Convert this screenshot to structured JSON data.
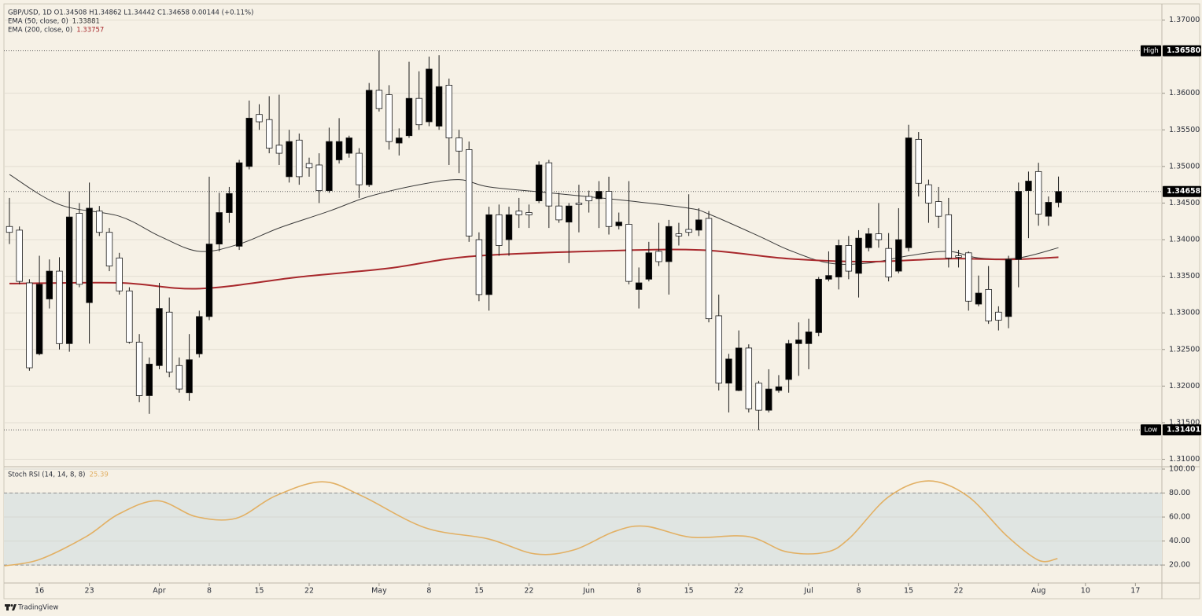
{
  "chart_data": [
    {
      "type": "candlestick",
      "title": "GBP/USD, 1D  O1.34508 H1.34862 L1.34442 C1.34658 0.00144 (+0.11%)",
      "open": [
        1.3418,
        1.3413,
        1.3341,
        1.3244,
        1.3319,
        1.3357,
        1.3258,
        1.3436,
        1.3314,
        1.3439,
        1.341,
        1.3375,
        1.333,
        1.326,
        1.3187,
        1.3228,
        1.3301,
        1.3228,
        1.3191,
        1.3244,
        1.3295,
        1.3394,
        1.3437,
        1.3391,
        1.35,
        1.3571,
        1.3564,
        1.3529,
        1.3486,
        1.3536,
        1.3504,
        1.3502,
        1.3467,
        1.3509,
        1.3518,
        1.3518,
        1.3475,
        1.3604,
        1.3598,
        1.3532,
        1.3542,
        1.3593,
        1.3561,
        1.3555,
        1.3611,
        1.3539,
        1.3523,
        1.34,
        1.3325,
        1.3434,
        1.34,
        1.3439,
        1.3437,
        1.3453,
        1.3505,
        1.3446,
        1.3424,
        1.345,
        1.3459,
        1.3456,
        1.3466,
        1.3419,
        1.3421,
        1.3332,
        1.3346,
        1.3384,
        1.337,
        1.3408,
        1.3414,
        1.3413,
        1.3429,
        1.3296,
        1.3204,
        1.3194,
        1.3252,
        1.3204,
        1.3167,
        1.3194,
        1.3209,
        1.3258,
        1.3258,
        1.3273,
        1.3346,
        1.3349,
        1.3392,
        1.3354,
        1.3389,
        1.3408,
        1.3388,
        1.3357,
        1.3389,
        1.3537,
        1.3475,
        1.3452,
        1.3434,
        1.3378,
        1.3382,
        1.3312,
        1.3332,
        1.3301,
        1.3295,
        1.3373,
        1.3467,
        1.3493,
        1.3432,
        1.34508
      ],
      "high": [
        1.3457,
        1.3418,
        1.3346,
        1.3378,
        1.3373,
        1.3376,
        1.3466,
        1.345,
        1.3478,
        1.3446,
        1.3416,
        1.3382,
        1.3335,
        1.3271,
        1.3239,
        1.3341,
        1.3321,
        1.3239,
        1.3271,
        1.3303,
        1.3486,
        1.3464,
        1.3472,
        1.3509,
        1.359,
        1.3585,
        1.3596,
        1.3598,
        1.355,
        1.3545,
        1.3512,
        1.3518,
        1.3553,
        1.3566,
        1.3542,
        1.3525,
        1.3614,
        1.3658,
        1.3611,
        1.3552,
        1.3643,
        1.363,
        1.365,
        1.3652,
        1.362,
        1.355,
        1.3534,
        1.341,
        1.3445,
        1.3448,
        1.3445,
        1.3457,
        1.3448,
        1.3507,
        1.3509,
        1.3464,
        1.345,
        1.3475,
        1.3467,
        1.348,
        1.3486,
        1.3437,
        1.348,
        1.3362,
        1.3397,
        1.3423,
        1.3427,
        1.3423,
        1.3462,
        1.3443,
        1.3439,
        1.3325,
        1.3244,
        1.3276,
        1.3257,
        1.3207,
        1.3223,
        1.3215,
        1.3263,
        1.3287,
        1.3292,
        1.3349,
        1.3384,
        1.34,
        1.3405,
        1.3413,
        1.3416,
        1.345,
        1.3409,
        1.3443,
        1.3557,
        1.3547,
        1.3482,
        1.3472,
        1.3457,
        1.3386,
        1.3384,
        1.3351,
        1.3364,
        1.3309,
        1.3378,
        1.3478,
        1.3493,
        1.3505,
        1.3459,
        1.34862
      ],
      "low": [
        1.3394,
        1.3339,
        1.3221,
        1.3242,
        1.3306,
        1.325,
        1.3247,
        1.3335,
        1.3258,
        1.3405,
        1.3357,
        1.3325,
        1.3258,
        1.3178,
        1.3162,
        1.3223,
        1.3212,
        1.3191,
        1.318,
        1.3239,
        1.329,
        1.3384,
        1.3423,
        1.3386,
        1.3496,
        1.355,
        1.3518,
        1.3502,
        1.3478,
        1.3475,
        1.3486,
        1.345,
        1.3464,
        1.3504,
        1.3512,
        1.3457,
        1.3472,
        1.3575,
        1.3523,
        1.3515,
        1.3539,
        1.355,
        1.3555,
        1.355,
        1.3502,
        1.3491,
        1.3397,
        1.3316,
        1.3303,
        1.3378,
        1.3378,
        1.3416,
        1.3416,
        1.345,
        1.3416,
        1.3423,
        1.3368,
        1.341,
        1.3437,
        1.3416,
        1.3407,
        1.3414,
        1.3339,
        1.3306,
        1.3343,
        1.3364,
        1.3325,
        1.3392,
        1.3405,
        1.3405,
        1.3287,
        1.3194,
        1.3164,
        1.3193,
        1.3164,
        1.314,
        1.3164,
        1.3191,
        1.3191,
        1.3214,
        1.3223,
        1.3268,
        1.3343,
        1.3332,
        1.3346,
        1.3321,
        1.3384,
        1.3389,
        1.3343,
        1.3354,
        1.3384,
        1.3459,
        1.3423,
        1.3416,
        1.3362,
        1.3362,
        1.3303,
        1.3309,
        1.3285,
        1.3276,
        1.3279,
        1.3335,
        1.3402,
        1.3419,
        1.3419,
        1.34442
      ],
      "close": [
        1.341,
        1.3343,
        1.3225,
        1.3339,
        1.3357,
        1.3258,
        1.3431,
        1.3339,
        1.3443,
        1.341,
        1.3364,
        1.333,
        1.326,
        1.3187,
        1.323,
        1.3306,
        1.3219,
        1.3196,
        1.3236,
        1.3295,
        1.3394,
        1.3437,
        1.3463,
        1.3505,
        1.3566,
        1.3561,
        1.3525,
        1.3518,
        1.3534,
        1.3486,
        1.3498,
        1.3467,
        1.3534,
        1.3534,
        1.3539,
        1.3475,
        1.3604,
        1.3579,
        1.3534,
        1.3539,
        1.3593,
        1.3557,
        1.3633,
        1.3609,
        1.3539,
        1.3521,
        1.3405,
        1.3325,
        1.3434,
        1.3392,
        1.3434,
        1.3434,
        1.3434,
        1.3502,
        1.3446,
        1.3427,
        1.3446,
        1.3448,
        1.3453,
        1.3466,
        1.3418,
        1.3424,
        1.3343,
        1.3341,
        1.3382,
        1.337,
        1.3418,
        1.3405,
        1.341,
        1.3427,
        1.3292,
        1.3204,
        1.3237,
        1.3252,
        1.3169,
        1.3167,
        1.3196,
        1.3199,
        1.3258,
        1.3263,
        1.3274,
        1.3346,
        1.3351,
        1.3392,
        1.3357,
        1.3402,
        1.3408,
        1.34,
        1.3349,
        1.34,
        1.3539,
        1.3477,
        1.345,
        1.3432,
        1.3375,
        1.3376,
        1.3316,
        1.3327,
        1.3289,
        1.329,
        1.3373,
        1.3466,
        1.348,
        1.3435,
        1.3451,
        1.34658
      ],
      "up_color": "#000000",
      "down_color": "#ffffff",
      "xlim": [
        -0.55,
        115.35
      ],
      "xticks": [
        {
          "value": 3,
          "label": "16"
        },
        {
          "value": 8,
          "label": "23"
        },
        {
          "value": 15,
          "label": "Apr"
        },
        {
          "value": 20,
          "label": "8"
        },
        {
          "value": 25,
          "label": "15"
        },
        {
          "value": 30,
          "label": "22"
        },
        {
          "value": 37,
          "label": "May"
        },
        {
          "value": 42,
          "label": "8"
        },
        {
          "value": 47,
          "label": "15"
        },
        {
          "value": 52,
          "label": "22"
        },
        {
          "value": 58,
          "label": "Jun"
        },
        {
          "value": 63,
          "label": "8"
        },
        {
          "value": 68,
          "label": "15"
        },
        {
          "value": 73,
          "label": "22"
        },
        {
          "value": 80,
          "label": "Jul"
        },
        {
          "value": 85,
          "label": "8"
        },
        {
          "value": 90,
          "label": "15"
        },
        {
          "value": 95,
          "label": "22"
        },
        {
          "value": 103,
          "label": "Aug"
        },
        {
          "value": 107.7,
          "label": "10"
        },
        {
          "value": 112.7,
          "label": "17"
        }
      ],
      "ylim": [
        1.3092,
        1.3722
      ],
      "yticks": [
        {
          "value": 1.31,
          "label": "1.31000"
        },
        {
          "value": 1.315,
          "label": "1.31500"
        },
        {
          "value": 1.32,
          "label": "1.32000"
        },
        {
          "value": 1.325,
          "label": "1.32500"
        },
        {
          "value": 1.33,
          "label": "1.33000"
        },
        {
          "value": 1.335,
          "label": "1.33500"
        },
        {
          "value": 1.34,
          "label": "1.34000"
        },
        {
          "value": 1.345,
          "label": "1.34500"
        },
        {
          "value": 1.35,
          "label": "1.35000"
        },
        {
          "value": 1.355,
          "label": "1.35500"
        },
        {
          "value": 1.36,
          "label": "1.36000"
        },
        {
          "value": 1.37,
          "label": "1.37000"
        }
      ],
      "grid": true,
      "overlays": [
        {
          "name": "EMA (50, close, 0)",
          "last_label": "1.33881",
          "color": "#3a3a3a",
          "width": 1,
          "x": [
            0,
            5,
            11,
            15,
            19,
            23,
            27,
            32,
            36,
            41,
            45,
            48,
            54,
            62,
            68,
            70,
            75,
            78,
            82,
            86,
            90,
            94,
            97,
            101,
            105
          ],
          "values": [
            1.3489,
            1.3448,
            1.3432,
            1.3405,
            1.3384,
            1.3394,
            1.3416,
            1.3439,
            1.3459,
            1.3475,
            1.3482,
            1.3472,
            1.3464,
            1.3453,
            1.3443,
            1.3435,
            1.3405,
            1.3386,
            1.3368,
            1.3368,
            1.3378,
            1.3384,
            1.3375,
            1.3375,
            1.3389
          ]
        },
        {
          "name": "EMA (200, close, 0)",
          "last_label": "1.33757",
          "color": "#a8282c",
          "width": 2,
          "x": [
            0,
            11,
            19,
            29,
            38,
            46,
            58,
            69,
            78,
            86,
            94,
            100,
            105
          ],
          "values": [
            1.334,
            1.3341,
            1.3333,
            1.3349,
            1.3361,
            1.3377,
            1.3384,
            1.3386,
            1.3374,
            1.337,
            1.3374,
            1.3373,
            1.3376
          ]
        }
      ],
      "markers": [
        {
          "name": "High",
          "value": 1.3658,
          "value_label": "1.36580"
        },
        {
          "name": "Low",
          "value": 1.31401,
          "value_label": "1.31401"
        },
        {
          "value": 1.34658,
          "value_label": "1.34658"
        }
      ]
    },
    {
      "type": "line",
      "title": "Stoch RSI (14, 14, 8, 8)",
      "last_label": "25.39",
      "color": "#e2b064",
      "xlim": [
        -0.55,
        115.35
      ],
      "x": [
        -0.5,
        3,
        7.7,
        10.9,
        14.8,
        18.7,
        22.7,
        26.6,
        31.3,
        35.3,
        41.6,
        47.9,
        52.6,
        56.5,
        60.5,
        63.6,
        68.3,
        73.9,
        77.8,
        81.7,
        84.1,
        88,
        92,
        95.9,
        99.8,
        103,
        104.9
      ],
      "values": [
        19.3,
        24.6,
        43.8,
        62.3,
        73.6,
        60.3,
        59.0,
        77.5,
        89.4,
        77.5,
        51.1,
        41.8,
        29.3,
        32.6,
        47.8,
        52.4,
        43.1,
        43.8,
        31.0,
        30.6,
        42.5,
        76.9,
        90.1,
        77.5,
        44.5,
        24.0,
        25.4
      ],
      "ylim": [
        5,
        100
      ],
      "yticks": [
        {
          "value": 20,
          "label": "20.00"
        },
        {
          "value": 40,
          "label": "40.00"
        },
        {
          "value": 60,
          "label": "60.00"
        },
        {
          "value": 80,
          "label": "80.00"
        },
        {
          "value": 100,
          "label": "100.00"
        }
      ],
      "band": [
        20,
        80
      ],
      "band_color": "#e0e5e2",
      "grid": true
    }
  ],
  "watermark": "TradingView"
}
